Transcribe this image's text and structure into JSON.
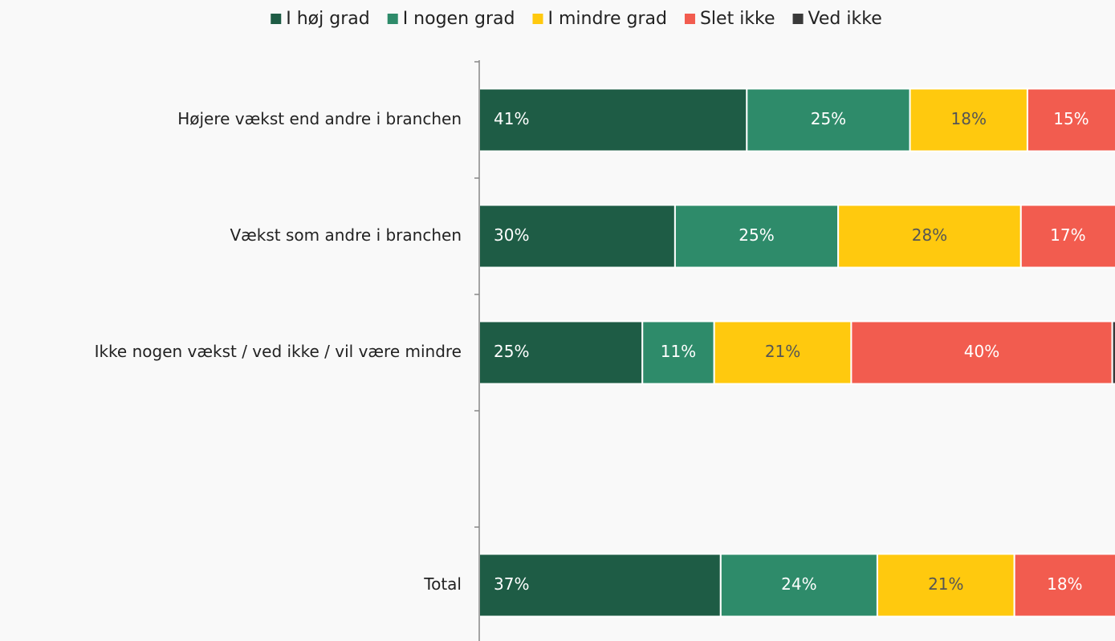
{
  "chart_data": {
    "type": "stacked-bar-horizontal",
    "categories": [
      "Højere vækst end andre i branchen",
      "Vækst som andre i branchen",
      "Ikke nogen vækst / ved ikke / vil være mindre",
      null,
      "Total"
    ],
    "series": [
      {
        "name": "I høj grad",
        "color": "#1e5c45",
        "values": [
          41,
          30,
          25,
          null,
          37
        ],
        "value_labels": [
          "41%",
          "30%",
          "25%",
          null,
          "37%"
        ]
      },
      {
        "name": "I nogen grad",
        "color": "#2e8b6a",
        "values": [
          25,
          25,
          11,
          null,
          24
        ],
        "value_labels": [
          "25%",
          "25%",
          "11%",
          null,
          "24%"
        ]
      },
      {
        "name": "I mindre grad",
        "color": "#ffc90e",
        "values": [
          18,
          28,
          21,
          null,
          21
        ],
        "value_labels": [
          "18%",
          "28%",
          "21%",
          null,
          "21%"
        ]
      },
      {
        "name": "Slet ikke",
        "color": "#f25c4f",
        "values": [
          15,
          17,
          40,
          null,
          18
        ],
        "value_labels": [
          "15%",
          "17%",
          "40%",
          null,
          "18%"
        ]
      },
      {
        "name": "Ved ikke",
        "color": "#3a3a3a",
        "values": [
          1,
          0,
          3,
          null,
          0
        ]
      }
    ],
    "xlim": [
      0,
      100
    ],
    "legend": "top"
  }
}
